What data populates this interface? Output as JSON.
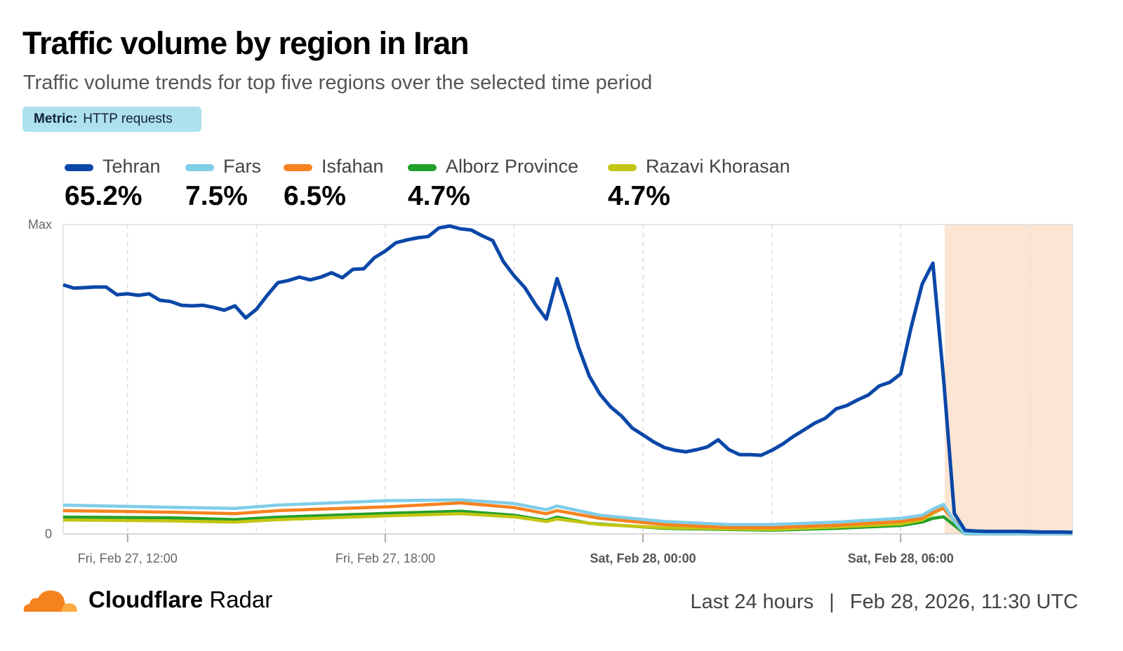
{
  "header": {
    "title": "Traffic volume by region in Iran",
    "subtitle": "Traffic volume trends for top five regions over the selected time period",
    "metric_label": "Metric:",
    "metric_value": "HTTP requests"
  },
  "legend": [
    {
      "name": "Tehran",
      "share": "65.2%",
      "color": "#0a47a8"
    },
    {
      "name": "Fars",
      "share": "7.5%",
      "color": "#80cde8"
    },
    {
      "name": "Isfahan",
      "share": "6.5%",
      "color": "#f6821f"
    },
    {
      "name": "Alborz Province",
      "share": "4.7%",
      "color": "#22a02a"
    },
    {
      "name": "Razavi Khorasan",
      "share": "4.7%",
      "color": "#c3c512"
    }
  ],
  "chart_data": {
    "type": "line",
    "title": "Traffic volume by region in Iran",
    "start": "Fri, Feb 27, 10:30",
    "interval_minutes": 15,
    "y_unit": "% of max",
    "ylim": [
      0,
      100
    ],
    "y_ticks": [
      {
        "value": 100,
        "label": "Max"
      },
      {
        "value": 0,
        "label": "0"
      }
    ],
    "x_ticks": [
      {
        "index": 6,
        "label": "Fri, Feb 27, 12:00",
        "bold": false
      },
      {
        "index": 30,
        "label": "Fri, Feb 27, 18:00",
        "bold": false
      },
      {
        "index": 54,
        "label": "Sat, Feb 28, 00:00",
        "bold": true
      },
      {
        "index": 78,
        "label": "Sat, Feb 28, 06:00",
        "bold": true
      }
    ],
    "grid_every_index": 12,
    "highlight": {
      "from_index": 82.1,
      "to_index": 94,
      "color": "#fde5d3"
    },
    "series": [
      {
        "name": "Tehran",
        "values": [
          80.5,
          79.4,
          79.6,
          79.8,
          79.8,
          77.3,
          77.6,
          77.1,
          77.6,
          75.5,
          75.1,
          73.9,
          73.7,
          73.9,
          73.2,
          72.3,
          73.7,
          69.8,
          72.6,
          77.1,
          81.2,
          81.9,
          83.0,
          82.1,
          83.0,
          84.4,
          82.8,
          85.5,
          85.7,
          89.3,
          91.4,
          94.1,
          95.0,
          95.7,
          96.1,
          98.9,
          99.5,
          98.6,
          98.2,
          96.4,
          94.8,
          88.0,
          83.4,
          79.6,
          74.1,
          69.4,
          82.5,
          72.1,
          60.3,
          51.0,
          45.1,
          41.0,
          38.1,
          34.2,
          32.0,
          29.7,
          27.9,
          27.0,
          26.5,
          27.2,
          28.1,
          30.4,
          27.2,
          25.6,
          25.6,
          25.4,
          27.0,
          29.0,
          31.5,
          33.6,
          35.8,
          37.4,
          40.4,
          41.5,
          43.3,
          44.9,
          47.8,
          49.0,
          51.7,
          67.1,
          80.7,
          87.5,
          50.1,
          6.6,
          1.1,
          0.9,
          0.8,
          0.8,
          0.8,
          0.8,
          0.7,
          0.6,
          0.6,
          0.6,
          0.5
        ]
      },
      {
        "name": "Fars",
        "points": [
          [
            0,
            9.3
          ],
          [
            10,
            8.6
          ],
          [
            16,
            8.2
          ],
          [
            20,
            9.3
          ],
          [
            30,
            10.7
          ],
          [
            37,
            11
          ],
          [
            42,
            9.8
          ],
          [
            45,
            7.8
          ],
          [
            46,
            9
          ],
          [
            50,
            6
          ],
          [
            56,
            4
          ],
          [
            62,
            3
          ],
          [
            66,
            3
          ],
          [
            72,
            3.8
          ],
          [
            78,
            5
          ],
          [
            80,
            6
          ],
          [
            81,
            8
          ],
          [
            82,
            9.5
          ],
          [
            83,
            4
          ],
          [
            84,
            0
          ],
          [
            94,
            0
          ]
        ]
      },
      {
        "name": "Isfahan",
        "points": [
          [
            0,
            7.5
          ],
          [
            10,
            7
          ],
          [
            16,
            6.5
          ],
          [
            20,
            7.5
          ],
          [
            30,
            8.7
          ],
          [
            37,
            10
          ],
          [
            42,
            8.5
          ],
          [
            45,
            6.5
          ],
          [
            46,
            7.5
          ],
          [
            50,
            5
          ],
          [
            56,
            3
          ],
          [
            62,
            2
          ],
          [
            66,
            2
          ],
          [
            72,
            2.8
          ],
          [
            78,
            4
          ],
          [
            80,
            5
          ],
          [
            81,
            7
          ],
          [
            82,
            8.2
          ],
          [
            84,
            0
          ],
          [
            94,
            0
          ]
        ]
      },
      {
        "name": "Razavi Khorasan",
        "points": [
          [
            0,
            4.5
          ],
          [
            10,
            4.2
          ],
          [
            16,
            3.8
          ],
          [
            20,
            4.6
          ],
          [
            30,
            5.8
          ],
          [
            37,
            6.5
          ],
          [
            42,
            5.5
          ],
          [
            45,
            4
          ],
          [
            46,
            4.8
          ],
          [
            50,
            3
          ],
          [
            56,
            2
          ],
          [
            62,
            1.6
          ],
          [
            66,
            1.4
          ],
          [
            72,
            2.2
          ],
          [
            78,
            3.2
          ],
          [
            80,
            4.5
          ],
          [
            81,
            6.5
          ],
          [
            82,
            8.5
          ],
          [
            84,
            0
          ],
          [
            94,
            0
          ]
        ]
      },
      {
        "name": "Alborz Province",
        "points": [
          [
            0,
            5.4
          ],
          [
            10,
            5.2
          ],
          [
            16,
            4.6
          ],
          [
            20,
            5.4
          ],
          [
            30,
            6.6
          ],
          [
            37,
            7.3
          ],
          [
            42,
            6
          ],
          [
            45,
            4.3
          ],
          [
            46,
            5.4
          ],
          [
            49,
            3.4
          ],
          [
            56,
            1.8
          ],
          [
            62,
            1.4
          ],
          [
            66,
            1.2
          ],
          [
            72,
            1.8
          ],
          [
            78,
            2.7
          ],
          [
            80,
            3.8
          ],
          [
            81,
            5
          ],
          [
            82,
            5.5
          ],
          [
            84,
            0
          ],
          [
            94,
            0
          ]
        ]
      }
    ]
  },
  "footer": {
    "brand_bold": "Cloudflare",
    "brand_rest": " Radar",
    "range": "Last 24 hours",
    "separator": "|",
    "timestamp": "Feb 28, 2026, 11:30 UTC"
  }
}
